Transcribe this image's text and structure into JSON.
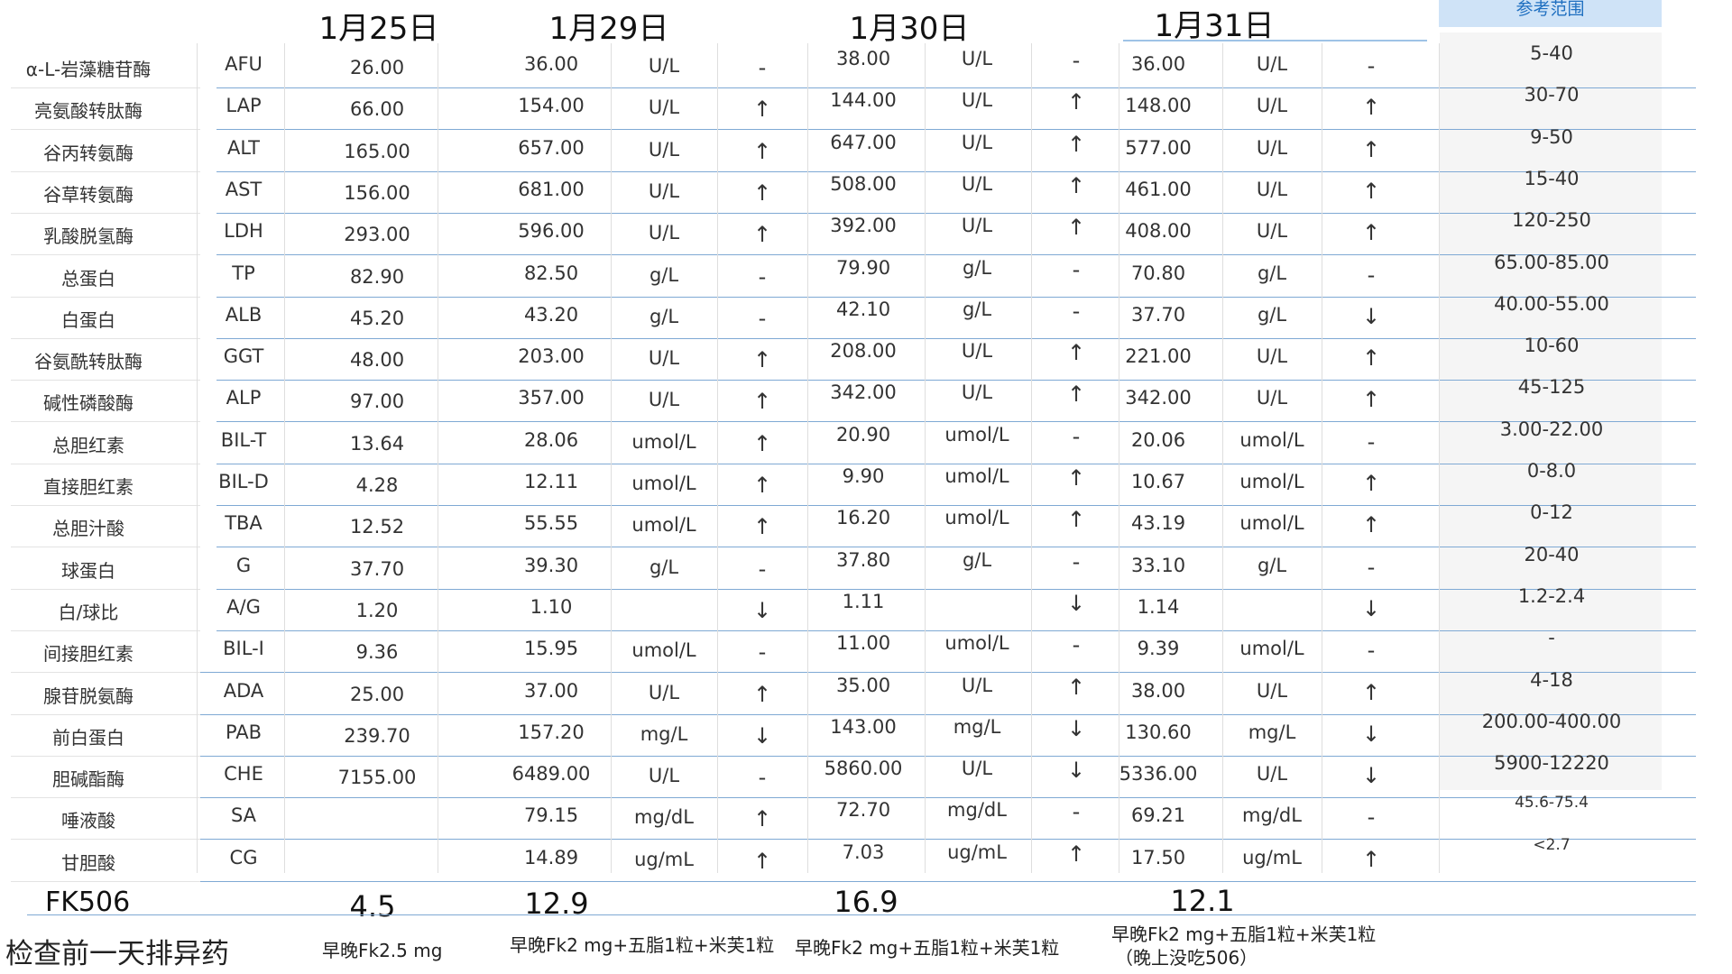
{
  "dates": [
    "1月25日",
    "1月29日",
    "1月30日",
    "1月31日"
  ],
  "ref_header": "参考范围",
  "rows": [
    {
      "name": "α-L-岩藻糖苷酶",
      "code": "AFU",
      "d25": "26.00",
      "d29": "36.00",
      "u29": "U/L",
      "f29": "-",
      "d30": "38.00",
      "u30": "U/L",
      "f30": "-",
      "d31": "36.00",
      "u31": "U/L",
      "f31": "-",
      "ref": "5-40"
    },
    {
      "name": "亮氨酸转肽酶",
      "code": "LAP",
      "d25": "66.00",
      "d29": "154.00",
      "u29": "U/L",
      "f29": "↑",
      "d30": "144.00",
      "u30": "U/L",
      "f30": "↑",
      "d31": "148.00",
      "u31": "U/L",
      "f31": "↑",
      "ref": "30-70"
    },
    {
      "name": "谷丙转氨酶",
      "code": "ALT",
      "d25": "165.00",
      "d29": "657.00",
      "u29": "U/L",
      "f29": "↑",
      "d30": "647.00",
      "u30": "U/L",
      "f30": "↑",
      "d31": "577.00",
      "u31": "U/L",
      "f31": "↑",
      "ref": "9-50"
    },
    {
      "name": "谷草转氨酶",
      "code": "AST",
      "d25": "156.00",
      "d29": "681.00",
      "u29": "U/L",
      "f29": "↑",
      "d30": "508.00",
      "u30": "U/L",
      "f30": "↑",
      "d31": "461.00",
      "u31": "U/L",
      "f31": "↑",
      "ref": "15-40"
    },
    {
      "name": "乳酸脱氢酶",
      "code": "LDH",
      "d25": "293.00",
      "d29": "596.00",
      "u29": "U/L",
      "f29": "↑",
      "d30": "392.00",
      "u30": "U/L",
      "f30": "↑",
      "d31": "408.00",
      "u31": "U/L",
      "f31": "↑",
      "ref": "120-250"
    },
    {
      "name": "总蛋白",
      "code": "TP",
      "d25": "82.90",
      "d29": "82.50",
      "u29": "g/L",
      "f29": "-",
      "d30": "79.90",
      "u30": "g/L",
      "f30": "-",
      "d31": "70.80",
      "u31": "g/L",
      "f31": "-",
      "ref": "65.00-85.00"
    },
    {
      "name": "白蛋白",
      "code": "ALB",
      "d25": "45.20",
      "d29": "43.20",
      "u29": "g/L",
      "f29": "-",
      "d30": "42.10",
      "u30": "g/L",
      "f30": "-",
      "d31": "37.70",
      "u31": "g/L",
      "f31": "↓",
      "ref": "40.00-55.00"
    },
    {
      "name": "谷氨酰转肽酶",
      "code": "GGT",
      "d25": "48.00",
      "d29": "203.00",
      "u29": "U/L",
      "f29": "↑",
      "d30": "208.00",
      "u30": "U/L",
      "f30": "↑",
      "d31": "221.00",
      "u31": "U/L",
      "f31": "↑",
      "ref": "10-60"
    },
    {
      "name": "碱性磷酸酶",
      "code": "ALP",
      "d25": "97.00",
      "d29": "357.00",
      "u29": "U/L",
      "f29": "↑",
      "d30": "342.00",
      "u30": "U/L",
      "f30": "↑",
      "d31": "342.00",
      "u31": "U/L",
      "f31": "↑",
      "ref": "45-125"
    },
    {
      "name": "总胆红素",
      "code": "BIL-T",
      "d25": "13.64",
      "d29": "28.06",
      "u29": "umol/L",
      "f29": "↑",
      "d30": "20.90",
      "u30": "umol/L",
      "f30": "-",
      "d31": "20.06",
      "u31": "umol/L",
      "f31": "-",
      "ref": "3.00-22.00"
    },
    {
      "name": "直接胆红素",
      "code": "BIL-D",
      "d25": "4.28",
      "d29": "12.11",
      "u29": "umol/L",
      "f29": "↑",
      "d30": "9.90",
      "u30": "umol/L",
      "f30": "↑",
      "d31": "10.67",
      "u31": "umol/L",
      "f31": "↑",
      "ref": "0-8.0"
    },
    {
      "name": "总胆汁酸",
      "code": "TBA",
      "d25": "12.52",
      "d29": "55.55",
      "u29": "umol/L",
      "f29": "↑",
      "d30": "16.20",
      "u30": "umol/L",
      "f30": "↑",
      "d31": "43.19",
      "u31": "umol/L",
      "f31": "↑",
      "ref": "0-12"
    },
    {
      "name": "球蛋白",
      "code": "G",
      "d25": "37.70",
      "d29": "39.30",
      "u29": "g/L",
      "f29": "-",
      "d30": "37.80",
      "u30": "g/L",
      "f30": "-",
      "d31": "33.10",
      "u31": "g/L",
      "f31": "-",
      "ref": "20-40"
    },
    {
      "name": "白/球比",
      "code": "A/G",
      "d25": "1.20",
      "d29": "1.10",
      "u29": "",
      "f29": "↓",
      "d30": "1.11",
      "u30": "",
      "f30": "↓",
      "d31": "1.14",
      "u31": "",
      "f31": "↓",
      "ref": "1.2-2.4"
    },
    {
      "name": "间接胆红素",
      "code": "BIL-I",
      "d25": "9.36",
      "d29": "15.95",
      "u29": "umol/L",
      "f29": "-",
      "d30": "11.00",
      "u30": "umol/L",
      "f30": "-",
      "d31": "9.39",
      "u31": "umol/L",
      "f31": "-",
      "ref": "-"
    },
    {
      "name": "腺苷脱氨酶",
      "code": "ADA",
      "d25": "25.00",
      "d29": "37.00",
      "u29": "U/L",
      "f29": "↑",
      "d30": "35.00",
      "u30": "U/L",
      "f30": "↑",
      "d31": "38.00",
      "u31": "U/L",
      "f31": "↑",
      "ref": "4-18"
    },
    {
      "name": "前白蛋白",
      "code": "PAB",
      "d25": "239.70",
      "d29": "157.20",
      "u29": "mg/L",
      "f29": "↓",
      "d30": "143.00",
      "u30": "mg/L",
      "f30": "↓",
      "d31": "130.60",
      "u31": "mg/L",
      "f31": "↓",
      "ref": "200.00-400.00"
    },
    {
      "name": "胆碱酯酶",
      "code": "CHE",
      "d25": "7155.00",
      "d29": "6489.00",
      "u29": "U/L",
      "f29": "-",
      "d30": "5860.00",
      "u30": "U/L",
      "f30": "↓",
      "d31": "5336.00",
      "u31": "U/L",
      "f31": "↓",
      "ref": "5900-12220"
    },
    {
      "name": "唾液酸",
      "code": "SA",
      "d25": "",
      "d29": "79.15",
      "u29": "mg/dL",
      "f29": "↑",
      "d30": "72.70",
      "u30": "mg/dL",
      "f30": "-",
      "d31": "69.21",
      "u31": "mg/dL",
      "f31": "-",
      "ref": "45.6-75.4"
    },
    {
      "name": "甘胆酸",
      "code": "CG",
      "d25": "",
      "d29": "14.89",
      "u29": "ug/mL",
      "f29": "↑",
      "d30": "7.03",
      "u30": "ug/mL",
      "f30": "↑",
      "d31": "17.50",
      "u31": "ug/mL",
      "f31": "↑",
      "ref": "<2.7"
    }
  ],
  "fk": {
    "label": "FK506",
    "values": [
      "4.5",
      "12.9",
      "16.9",
      "12.1"
    ]
  },
  "medication": {
    "label": "检查前一天排异药",
    "notes": [
      "早晚Fk2.5 mg",
      "早晚Fk2 mg+五脂1粒+米芙1粒",
      "早晚Fk2 mg+五脂1粒+米芙1粒",
      "早晚Fk2 mg+五脂1粒+米芙1粒",
      "（晚上没吃506）"
    ]
  }
}
